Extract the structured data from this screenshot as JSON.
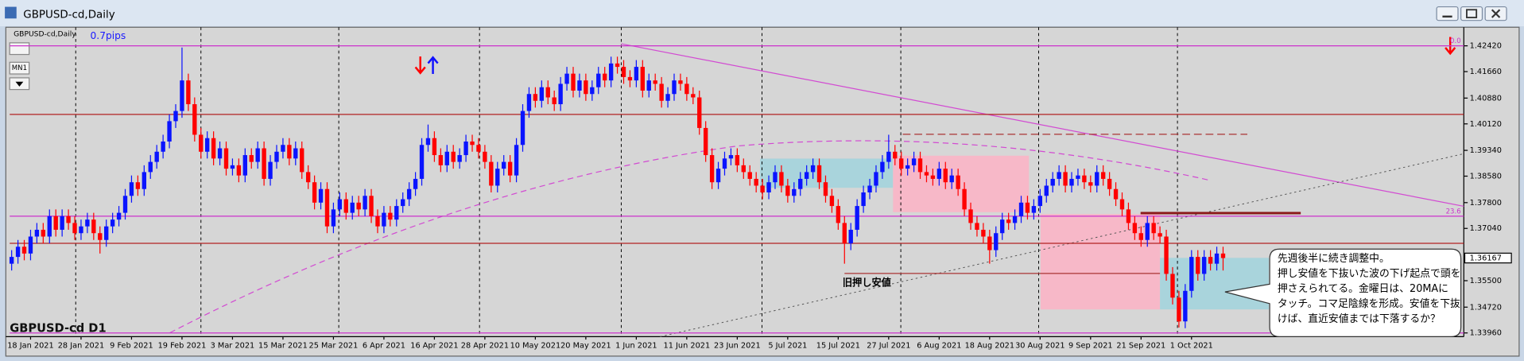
{
  "window": {
    "title": "GBPUSD-cd,Daily",
    "timeframe_button": "MN1"
  },
  "chart_data": {
    "type": "candlestick",
    "title": "GBPUSD-cd,Daily",
    "spread_label": "0.7pips",
    "symbol_label": "GBPUSD-cd D1",
    "old_low_label": "旧押し安値",
    "note": [
      "先週後半に続き調整中。",
      "押し安値を下抜いた波の下げ起点で頭を",
      "押さえられてる。金曜日は、20MAに",
      "タッチ。コマ足陰線を形成。安値を下抜",
      "けば、直近安値までは下落するか？"
    ],
    "up_color": "#0a14ff",
    "down_color": "#ff0000",
    "ylim": [
      1.3385,
      1.4291
    ],
    "yticks": [
      {
        "value": 1.4242,
        "label": "1.42420"
      },
      {
        "value": 1.4166,
        "label": "1.41660"
      },
      {
        "value": 1.4088,
        "label": "1.40880"
      },
      {
        "value": 1.4012,
        "label": "1.40120"
      },
      {
        "value": 1.3934,
        "label": "1.39340"
      },
      {
        "value": 1.3858,
        "label": "1.38580"
      },
      {
        "value": 1.378,
        "label": "1.37800"
      },
      {
        "value": 1.3704,
        "label": "1.37040"
      },
      {
        "value": 1.355,
        "label": "1.35500"
      },
      {
        "value": 1.3472,
        "label": "1.34720"
      },
      {
        "value": 1.3396,
        "label": "1.33960"
      }
    ],
    "current_price": 1.36167,
    "levels": [
      {
        "value": 1.4242,
        "color": "#cc33cc",
        "label": "0.0"
      },
      {
        "value": 1.404,
        "color": "#b22222"
      },
      {
        "value": 1.374,
        "color": "#cc33cc",
        "label": "23.6"
      },
      {
        "value": 1.366,
        "color": "#b22222"
      },
      {
        "value": 1.3396,
        "color": "#cc33cc"
      }
    ],
    "categories": [
      null,
      null,
      null,
      "18 Jan 2021",
      null,
      null,
      null,
      null,
      null,
      null,
      null,
      "28 Jan 2021",
      null,
      null,
      null,
      null,
      null,
      null,
      null,
      "9 Feb 2021",
      null,
      null,
      null,
      null,
      null,
      null,
      null,
      "19 Feb 2021",
      null,
      null,
      null,
      null,
      null,
      null,
      null,
      "3 Mar 2021",
      null,
      null,
      null,
      null,
      null,
      null,
      null,
      "15 Mar 2021",
      null,
      null,
      null,
      null,
      null,
      null,
      null,
      "25 Mar 2021",
      null,
      null,
      null,
      null,
      null,
      null,
      null,
      "6 Apr 2021",
      null,
      null,
      null,
      null,
      null,
      null,
      null,
      "16 Apr 2021",
      null,
      null,
      null,
      null,
      null,
      null,
      null,
      "28 Apr 2021",
      null,
      null,
      null,
      null,
      null,
      null,
      null,
      "10 May 2021",
      null,
      null,
      null,
      null,
      null,
      null,
      null,
      "20 May 2021",
      null,
      null,
      null,
      null,
      null,
      null,
      null,
      "1 Jun 2021",
      null,
      null,
      null,
      null,
      null,
      null,
      null,
      "11 Jun 2021",
      null,
      null,
      null,
      null,
      null,
      null,
      null,
      "23 Jun 2021",
      null,
      null,
      null,
      null,
      null,
      null,
      null,
      "5 Jul 2021",
      null,
      null,
      null,
      null,
      null,
      null,
      null,
      "15 Jul 2021",
      null,
      null,
      null,
      null,
      null,
      null,
      null,
      "27 Jul 2021",
      null,
      null,
      null,
      null,
      null,
      null,
      null,
      "6 Aug 2021",
      null,
      null,
      null,
      null,
      null,
      null,
      null,
      "18 Aug 2021",
      null,
      null,
      null,
      null,
      null,
      null,
      null,
      "30 Aug 2021",
      null,
      null,
      null,
      null,
      null,
      null,
      null,
      "9 Sep 2021",
      null,
      null,
      null,
      null,
      null,
      null,
      null,
      "21 Sep 2021",
      null,
      null,
      null,
      null,
      null,
      null,
      null,
      "1 Oct 2021",
      null,
      null,
      null,
      null,
      null
    ],
    "candles": [
      [
        1.36,
        1.364,
        1.358,
        1.362
      ],
      [
        1.362,
        1.367,
        1.36,
        1.365
      ],
      [
        1.365,
        1.367,
        1.361,
        1.363
      ],
      [
        1.363,
        1.37,
        1.361,
        1.368
      ],
      [
        1.368,
        1.372,
        1.366,
        1.37
      ],
      [
        1.37,
        1.372,
        1.366,
        1.368
      ],
      [
        1.368,
        1.376,
        1.366,
        1.374
      ],
      [
        1.374,
        1.376,
        1.368,
        1.37
      ],
      [
        1.37,
        1.376,
        1.368,
        1.374
      ],
      [
        1.374,
        1.376,
        1.37,
        1.372
      ],
      [
        1.372,
        1.374,
        1.367,
        1.369
      ],
      [
        1.369,
        1.373,
        1.367,
        1.371
      ],
      [
        1.371,
        1.375,
        1.369,
        1.373
      ],
      [
        1.373,
        1.375,
        1.367,
        1.369
      ],
      [
        1.369,
        1.371,
        1.363,
        1.367
      ],
      [
        1.367,
        1.373,
        1.365,
        1.371
      ],
      [
        1.371,
        1.375,
        1.369,
        1.373
      ],
      [
        1.373,
        1.377,
        1.371,
        1.375
      ],
      [
        1.375,
        1.382,
        1.373,
        1.38
      ],
      [
        1.38,
        1.386,
        1.378,
        1.384
      ],
      [
        1.384,
        1.386,
        1.38,
        1.382
      ],
      [
        1.382,
        1.389,
        1.38,
        1.387
      ],
      [
        1.387,
        1.392,
        1.385,
        1.39
      ],
      [
        1.39,
        1.395,
        1.388,
        1.393
      ],
      [
        1.393,
        1.398,
        1.391,
        1.396
      ],
      [
        1.396,
        1.404,
        1.394,
        1.402
      ],
      [
        1.402,
        1.407,
        1.4,
        1.405
      ],
      [
        1.405,
        1.4237,
        1.403,
        1.414
      ],
      [
        1.414,
        1.416,
        1.405,
        1.407
      ],
      [
        1.407,
        1.409,
        1.396,
        1.398
      ],
      [
        1.398,
        1.4,
        1.391,
        1.393
      ],
      [
        1.393,
        1.399,
        1.391,
        1.397
      ],
      [
        1.397,
        1.399,
        1.389,
        1.391
      ],
      [
        1.391,
        1.396,
        1.389,
        1.394
      ],
      [
        1.394,
        1.396,
        1.386,
        1.388
      ],
      [
        1.388,
        1.391,
        1.386,
        1.389
      ],
      [
        1.389,
        1.391,
        1.384,
        1.386
      ],
      [
        1.386,
        1.394,
        1.384,
        1.392
      ],
      [
        1.392,
        1.394,
        1.388,
        1.39
      ],
      [
        1.39,
        1.396,
        1.388,
        1.394
      ],
      [
        1.394,
        1.396,
        1.383,
        1.385
      ],
      [
        1.385,
        1.392,
        1.383,
        1.39
      ],
      [
        1.39,
        1.395,
        1.388,
        1.393
      ],
      [
        1.393,
        1.397,
        1.391,
        1.395
      ],
      [
        1.395,
        1.397,
        1.389,
        1.391
      ],
      [
        1.391,
        1.396,
        1.389,
        1.394
      ],
      [
        1.394,
        1.396,
        1.385,
        1.387
      ],
      [
        1.387,
        1.389,
        1.382,
        1.384
      ],
      [
        1.384,
        1.386,
        1.376,
        1.378
      ],
      [
        1.378,
        1.384,
        1.376,
        1.382
      ],
      [
        1.382,
        1.384,
        1.369,
        1.371
      ],
      [
        1.371,
        1.378,
        1.369,
        1.376
      ],
      [
        1.376,
        1.381,
        1.374,
        1.379
      ],
      [
        1.379,
        1.381,
        1.373,
        1.375
      ],
      [
        1.375,
        1.38,
        1.373,
        1.378
      ],
      [
        1.378,
        1.38,
        1.374,
        1.376
      ],
      [
        1.376,
        1.382,
        1.374,
        1.38
      ],
      [
        1.38,
        1.382,
        1.372,
        1.374
      ],
      [
        1.374,
        1.376,
        1.369,
        1.371
      ],
      [
        1.371,
        1.377,
        1.369,
        1.375
      ],
      [
        1.375,
        1.377,
        1.371,
        1.373
      ],
      [
        1.373,
        1.379,
        1.371,
        1.377
      ],
      [
        1.377,
        1.381,
        1.375,
        1.379
      ],
      [
        1.379,
        1.384,
        1.377,
        1.382
      ],
      [
        1.382,
        1.387,
        1.38,
        1.385
      ],
      [
        1.385,
        1.397,
        1.383,
        1.395
      ],
      [
        1.395,
        1.401,
        1.393,
        1.397
      ],
      [
        1.397,
        1.399,
        1.39,
        1.392
      ],
      [
        1.392,
        1.394,
        1.387,
        1.389
      ],
      [
        1.389,
        1.395,
        1.387,
        1.393
      ],
      [
        1.393,
        1.395,
        1.388,
        1.39
      ],
      [
        1.39,
        1.394,
        1.388,
        1.392
      ],
      [
        1.392,
        1.398,
        1.39,
        1.396
      ],
      [
        1.396,
        1.398,
        1.393,
        1.395
      ],
      [
        1.395,
        1.397,
        1.391,
        1.393
      ],
      [
        1.393,
        1.395,
        1.388,
        1.39
      ],
      [
        1.39,
        1.392,
        1.381,
        1.383
      ],
      [
        1.383,
        1.39,
        1.381,
        1.388
      ],
      [
        1.388,
        1.392,
        1.386,
        1.39
      ],
      [
        1.39,
        1.392,
        1.384,
        1.386
      ],
      [
        1.386,
        1.397,
        1.384,
        1.395
      ],
      [
        1.395,
        1.407,
        1.393,
        1.405
      ],
      [
        1.405,
        1.412,
        1.403,
        1.41
      ],
      [
        1.41,
        1.412,
        1.406,
        1.408
      ],
      [
        1.408,
        1.414,
        1.406,
        1.412
      ],
      [
        1.412,
        1.414,
        1.407,
        1.409
      ],
      [
        1.409,
        1.411,
        1.405,
        1.407
      ],
      [
        1.407,
        1.415,
        1.405,
        1.413
      ],
      [
        1.413,
        1.418,
        1.411,
        1.416
      ],
      [
        1.416,
        1.418,
        1.409,
        1.411
      ],
      [
        1.411,
        1.416,
        1.409,
        1.414
      ],
      [
        1.414,
        1.416,
        1.408,
        1.41
      ],
      [
        1.41,
        1.414,
        1.408,
        1.412
      ],
      [
        1.412,
        1.418,
        1.41,
        1.416
      ],
      [
        1.416,
        1.418,
        1.412,
        1.414
      ],
      [
        1.414,
        1.421,
        1.412,
        1.419
      ],
      [
        1.419,
        1.421,
        1.416,
        1.418
      ],
      [
        1.418,
        1.42,
        1.413,
        1.415
      ],
      [
        1.415,
        1.417,
        1.412,
        1.414
      ],
      [
        1.414,
        1.42,
        1.412,
        1.418
      ],
      [
        1.418,
        1.42,
        1.409,
        1.411
      ],
      [
        1.411,
        1.416,
        1.409,
        1.414
      ],
      [
        1.414,
        1.416,
        1.411,
        1.413
      ],
      [
        1.413,
        1.415,
        1.406,
        1.408
      ],
      [
        1.408,
        1.412,
        1.406,
        1.41
      ],
      [
        1.41,
        1.416,
        1.408,
        1.414
      ],
      [
        1.414,
        1.416,
        1.411,
        1.413
      ],
      [
        1.413,
        1.415,
        1.408,
        1.41
      ],
      [
        1.41,
        1.412,
        1.407,
        1.409
      ],
      [
        1.409,
        1.411,
        1.398,
        1.4
      ],
      [
        1.4,
        1.402,
        1.39,
        1.392
      ],
      [
        1.392,
        1.394,
        1.382,
        1.384
      ],
      [
        1.384,
        1.39,
        1.382,
        1.388
      ],
      [
        1.388,
        1.393,
        1.386,
        1.391
      ],
      [
        1.391,
        1.394,
        1.389,
        1.392
      ],
      [
        1.392,
        1.394,
        1.387,
        1.389
      ],
      [
        1.389,
        1.391,
        1.385,
        1.387
      ],
      [
        1.387,
        1.389,
        1.383,
        1.385
      ],
      [
        1.385,
        1.387,
        1.381,
        1.383
      ],
      [
        1.383,
        1.385,
        1.379,
        1.381
      ],
      [
        1.381,
        1.386,
        1.379,
        1.384
      ],
      [
        1.384,
        1.389,
        1.382,
        1.387
      ],
      [
        1.387,
        1.389,
        1.381,
        1.383
      ],
      [
        1.383,
        1.385,
        1.378,
        1.38
      ],
      [
        1.38,
        1.384,
        1.378,
        1.382
      ],
      [
        1.382,
        1.387,
        1.38,
        1.385
      ],
      [
        1.385,
        1.389,
        1.383,
        1.387
      ],
      [
        1.387,
        1.391,
        1.385,
        1.389
      ],
      [
        1.389,
        1.391,
        1.382,
        1.384
      ],
      [
        1.384,
        1.386,
        1.378,
        1.38
      ],
      [
        1.38,
        1.382,
        1.375,
        1.377
      ],
      [
        1.377,
        1.379,
        1.37,
        1.372
      ],
      [
        1.372,
        1.374,
        1.36,
        1.366
      ],
      [
        1.366,
        1.372,
        1.364,
        1.37
      ],
      [
        1.37,
        1.379,
        1.368,
        1.377
      ],
      [
        1.377,
        1.383,
        1.375,
        1.381
      ],
      [
        1.381,
        1.385,
        1.379,
        1.383
      ],
      [
        1.383,
        1.389,
        1.381,
        1.387
      ],
      [
        1.387,
        1.392,
        1.385,
        1.39
      ],
      [
        1.39,
        1.398,
        1.388,
        1.393
      ],
      [
        1.393,
        1.395,
        1.389,
        1.391
      ],
      [
        1.391,
        1.393,
        1.386,
        1.388
      ],
      [
        1.388,
        1.391,
        1.386,
        1.389
      ],
      [
        1.389,
        1.393,
        1.387,
        1.391
      ],
      [
        1.391,
        1.393,
        1.385,
        1.387
      ],
      [
        1.387,
        1.389,
        1.384,
        1.386
      ],
      [
        1.386,
        1.388,
        1.383,
        1.385
      ],
      [
        1.385,
        1.39,
        1.383,
        1.388
      ],
      [
        1.388,
        1.39,
        1.382,
        1.384
      ],
      [
        1.384,
        1.388,
        1.382,
        1.386
      ],
      [
        1.386,
        1.388,
        1.38,
        1.382
      ],
      [
        1.382,
        1.384,
        1.374,
        1.376
      ],
      [
        1.376,
        1.378,
        1.37,
        1.372
      ],
      [
        1.372,
        1.374,
        1.368,
        1.37
      ],
      [
        1.37,
        1.372,
        1.366,
        1.368
      ],
      [
        1.368,
        1.37,
        1.36,
        1.364
      ],
      [
        1.364,
        1.371,
        1.362,
        1.369
      ],
      [
        1.369,
        1.375,
        1.367,
        1.373
      ],
      [
        1.373,
        1.375,
        1.37,
        1.372
      ],
      [
        1.372,
        1.376,
        1.37,
        1.374
      ],
      [
        1.374,
        1.38,
        1.372,
        1.378
      ],
      [
        1.378,
        1.38,
        1.373,
        1.375
      ],
      [
        1.375,
        1.379,
        1.373,
        1.377
      ],
      [
        1.377,
        1.382,
        1.375,
        1.38
      ],
      [
        1.38,
        1.385,
        1.378,
        1.383
      ],
      [
        1.383,
        1.387,
        1.381,
        1.385
      ],
      [
        1.385,
        1.389,
        1.383,
        1.387
      ],
      [
        1.387,
        1.389,
        1.381,
        1.383
      ],
      [
        1.383,
        1.387,
        1.381,
        1.385
      ],
      [
        1.385,
        1.388,
        1.383,
        1.386
      ],
      [
        1.386,
        1.388,
        1.382,
        1.384
      ],
      [
        1.384,
        1.386,
        1.381,
        1.383
      ],
      [
        1.383,
        1.389,
        1.381,
        1.387
      ],
      [
        1.387,
        1.389,
        1.383,
        1.385
      ],
      [
        1.385,
        1.387,
        1.38,
        1.382
      ],
      [
        1.382,
        1.384,
        1.377,
        1.379
      ],
      [
        1.379,
        1.381,
        1.374,
        1.376
      ],
      [
        1.376,
        1.378,
        1.37,
        1.372
      ],
      [
        1.372,
        1.374,
        1.367,
        1.369
      ],
      [
        1.369,
        1.371,
        1.365,
        1.367
      ],
      [
        1.367,
        1.374,
        1.365,
        1.372
      ],
      [
        1.372,
        1.374,
        1.367,
        1.369
      ],
      [
        1.369,
        1.371,
        1.366,
        1.368
      ],
      [
        1.368,
        1.37,
        1.355,
        1.357
      ],
      [
        1.357,
        1.359,
        1.348,
        1.35
      ],
      [
        1.35,
        1.352,
        1.3412,
        1.343
      ],
      [
        1.343,
        1.354,
        1.341,
        1.352
      ],
      [
        1.352,
        1.364,
        1.35,
        1.362
      ],
      [
        1.362,
        1.364,
        1.355,
        1.357
      ],
      [
        1.357,
        1.364,
        1.355,
        1.362
      ],
      [
        1.362,
        1.364,
        1.358,
        1.36
      ],
      [
        1.36,
        1.365,
        1.358,
        1.363
      ],
      [
        1.363,
        1.365,
        1.358,
        1.36167
      ]
    ]
  }
}
